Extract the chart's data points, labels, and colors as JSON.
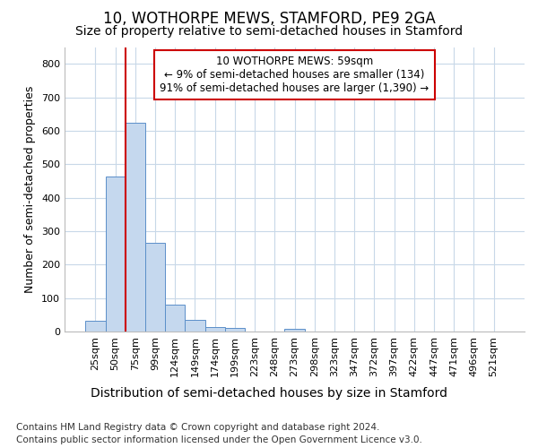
{
  "title": "10, WOTHORPE MEWS, STAMFORD, PE9 2GA",
  "subtitle": "Size of property relative to semi-detached houses in Stamford",
  "xlabel": "Distribution of semi-detached houses by size in Stamford",
  "ylabel": "Number of semi-detached properties",
  "categories": [
    "25sqm",
    "50sqm",
    "75sqm",
    "99sqm",
    "124sqm",
    "149sqm",
    "174sqm",
    "199sqm",
    "223sqm",
    "248sqm",
    "273sqm",
    "298sqm",
    "323sqm",
    "347sqm",
    "372sqm",
    "397sqm",
    "422sqm",
    "447sqm",
    "471sqm",
    "496sqm",
    "521sqm"
  ],
  "values": [
    33,
    462,
    625,
    265,
    80,
    35,
    13,
    12,
    0,
    0,
    8,
    0,
    0,
    0,
    0,
    0,
    0,
    0,
    0,
    0,
    0
  ],
  "bar_color": "#c5d8ee",
  "bar_edge_color": "#5b8fc9",
  "annotation_title": "10 WOTHORPE MEWS: 59sqm",
  "annotation_line1": "← 9% of semi-detached houses are smaller (134)",
  "annotation_line2": "91% of semi-detached houses are larger (1,390) →",
  "annotation_box_facecolor": "#ffffff",
  "annotation_box_edgecolor": "#cc0000",
  "vline_color": "#cc0000",
  "background_color": "#ffffff",
  "grid_color": "#c8d8e8",
  "ylim": [
    0,
    850
  ],
  "yticks": [
    0,
    100,
    200,
    300,
    400,
    500,
    600,
    700,
    800
  ],
  "footer_line1": "Contains HM Land Registry data © Crown copyright and database right 2024.",
  "footer_line2": "Contains public sector information licensed under the Open Government Licence v3.0.",
  "title_fontsize": 12,
  "subtitle_fontsize": 10,
  "xlabel_fontsize": 10,
  "ylabel_fontsize": 9,
  "tick_fontsize": 8,
  "annotation_fontsize": 8.5,
  "footer_fontsize": 7.5,
  "vline_x_index": 2.0
}
